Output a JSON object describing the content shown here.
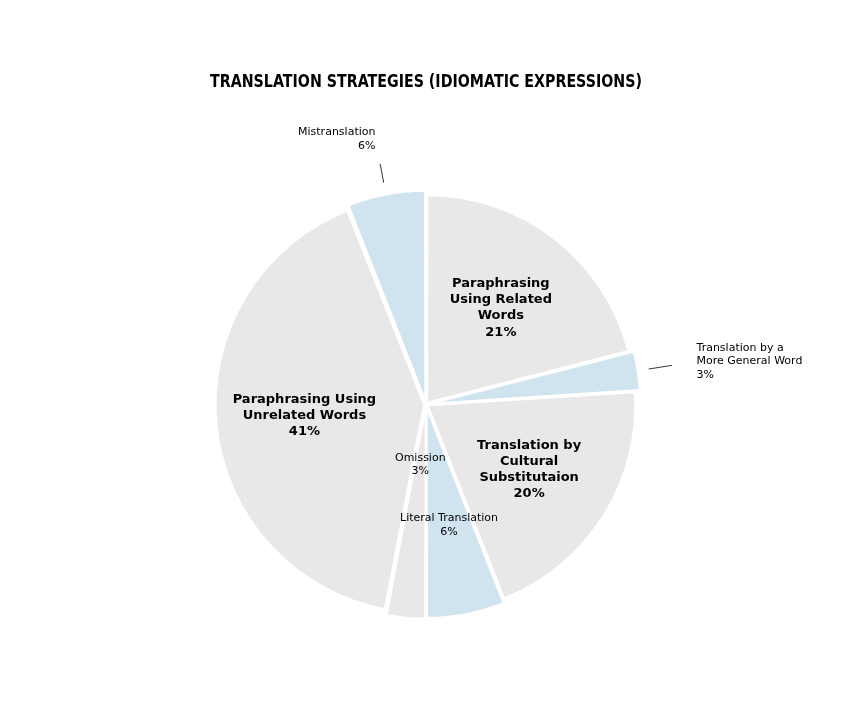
{
  "chart_data": {
    "type": "pie",
    "title": "TRANSLATION STRATEGIES (IDIOMATIC EXPRESSIONS)",
    "categories": [
      "Paraphrasing\nUsing Related\nWords",
      "Translation by a\nMore General Word",
      "Translation by\nCultural\nSubstitutaion",
      "Literal Translation",
      "Omission",
      "Paraphrasing Using\nUnrelated Words",
      "Mistranslation"
    ],
    "values": [
      21,
      3,
      20,
      6,
      3,
      41,
      6
    ],
    "value_labels": [
      "21%",
      "3%",
      "20%",
      "6%",
      "3%",
      "41%",
      "6%"
    ],
    "colors": [
      "#e8e8e8",
      "#d0e4f0",
      "#e8e8e8",
      "#d0e4f0",
      "#e8e8e8",
      "#e8e8e8",
      "#d0e4f0"
    ],
    "data_labels": true
  }
}
